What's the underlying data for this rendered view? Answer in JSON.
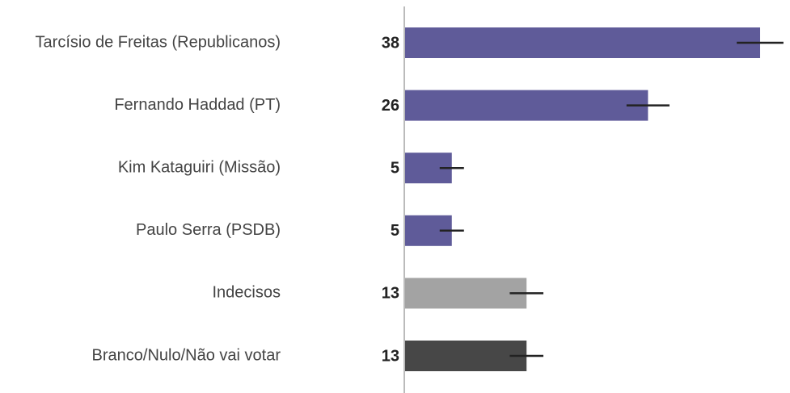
{
  "chart_data": {
    "type": "bar",
    "orientation": "horizontal",
    "categories": [
      "Tarcísio de Freitas (Republicanos)",
      "Fernando Haddad (PT)",
      "Kim Kataguiri (Missão)",
      "Paulo Serra (PSDB)",
      "Indecisos",
      "Branco/Nulo/Não vai votar"
    ],
    "values": [
      38,
      26,
      5,
      5,
      13,
      13
    ],
    "errors": [
      2.5,
      2.3,
      1.3,
      1.3,
      1.8,
      1.8
    ],
    "colors": [
      "#5f5b99",
      "#5f5b99",
      "#5f5b99",
      "#5f5b99",
      "#a3a3a3",
      "#474747"
    ],
    "xlim": [
      0,
      41.2
    ]
  }
}
